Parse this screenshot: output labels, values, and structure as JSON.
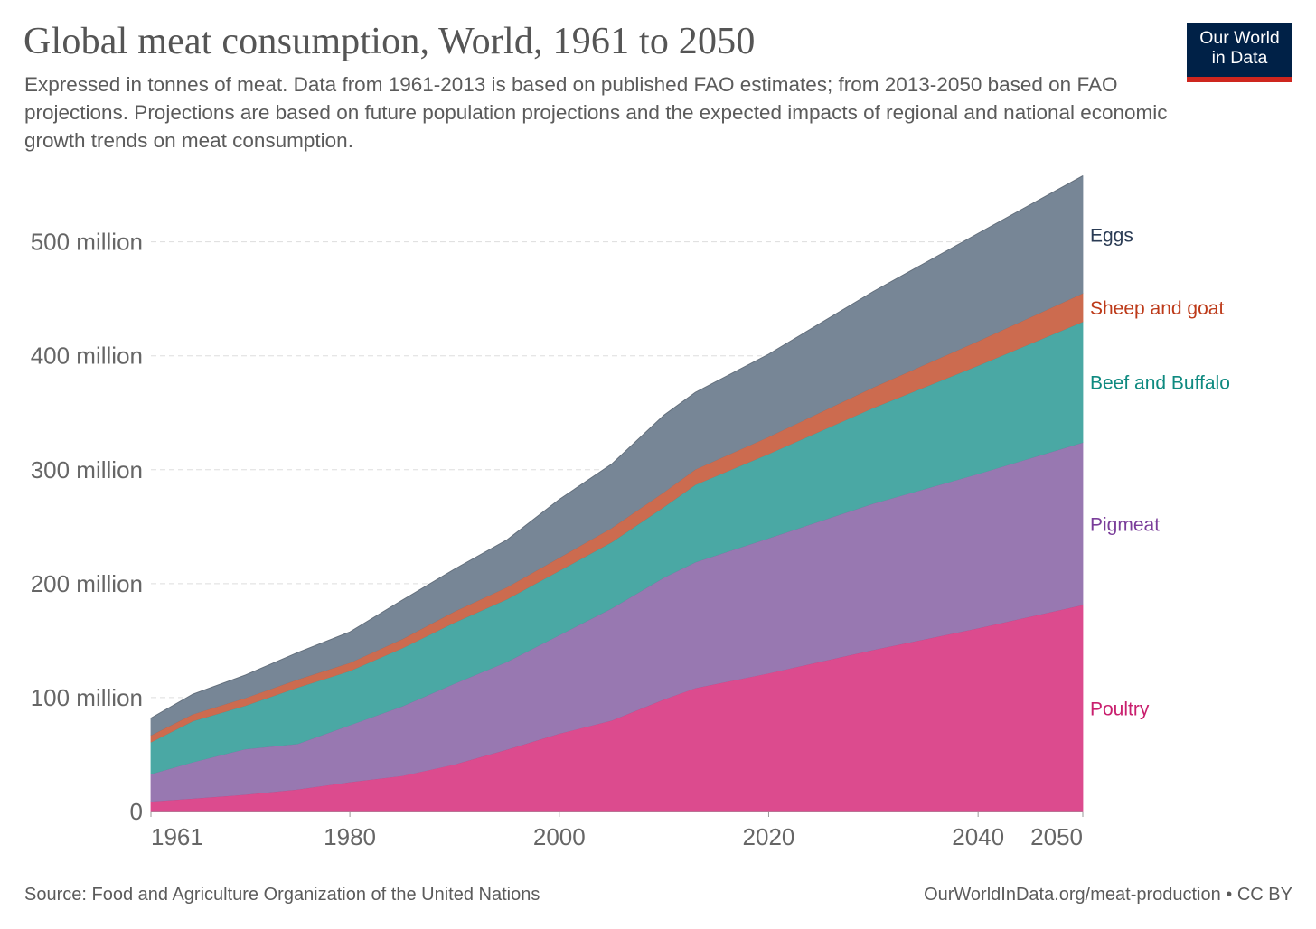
{
  "header": {
    "title": "Global meat consumption, World, 1961 to 2050",
    "subtitle": "Expressed in tonnes of meat. Data from 1961-2013 is based on published FAO estimates; from 2013-2050 based on FAO projections. Projections are based on future population projections and the expected impacts of regional and national economic growth trends on meat consumption."
  },
  "logo": {
    "line1": "Our World",
    "line2": "in Data",
    "bg_color": "#002147",
    "bar_color": "#ce261e"
  },
  "footer": {
    "source": "Source: Food and Agriculture Organization of the United Nations",
    "link": "OurWorldInData.org/meat-production • CC BY"
  },
  "chart_data": {
    "type": "area",
    "stacked": true,
    "title": "Global meat consumption, World, 1961 to 2050",
    "xlim": [
      1961,
      2050
    ],
    "ylim": [
      0,
      560000000
    ],
    "grid": "horizontal dashed",
    "legend": "right, inline labels",
    "x_ticks": [
      {
        "value": 1961,
        "label": "1961"
      },
      {
        "value": 1980,
        "label": "1980"
      },
      {
        "value": 2000,
        "label": "2000"
      },
      {
        "value": 2020,
        "label": "2020"
      },
      {
        "value": 2040,
        "label": "2040"
      },
      {
        "value": 2050,
        "label": "2050"
      }
    ],
    "y_ticks": [
      {
        "value": 0,
        "label": "0"
      },
      {
        "value": 100000000,
        "label": "100 million"
      },
      {
        "value": 200000000,
        "label": "200 million"
      },
      {
        "value": 300000000,
        "label": "300 million"
      },
      {
        "value": 400000000,
        "label": "400 million"
      },
      {
        "value": 500000000,
        "label": "500 million"
      }
    ],
    "x": [
      1961,
      1965,
      1970,
      1975,
      1980,
      1985,
      1990,
      1995,
      2000,
      2005,
      2010,
      2013,
      2020,
      2030,
      2040,
      2050
    ],
    "series": [
      {
        "name": "Poultry",
        "color": "#dc4b8e",
        "label_color": "#c91f6e",
        "values": [
          9000000,
          11500000,
          15000000,
          19500000,
          26000000,
          31500000,
          41500000,
          54500000,
          68500000,
          80000000,
          98500000,
          108500000,
          121500000,
          142000000,
          161000000,
          181500000
        ]
      },
      {
        "name": "Pigmeat",
        "color": "#9878b1",
        "label_color": "#7a3d9a",
        "values": [
          24000000,
          32000000,
          40000000,
          40000000,
          50000000,
          61000000,
          71000000,
          77000000,
          86500000,
          98500000,
          107000000,
          110500000,
          118500000,
          128500000,
          135500000,
          142500000
        ]
      },
      {
        "name": "Beef and Buffalo",
        "color": "#4aa8a4",
        "label_color": "#0f8a80",
        "values": [
          28000000,
          36000000,
          38000000,
          49500000,
          47500000,
          51000000,
          53500000,
          55000000,
          56500000,
          58000000,
          62000000,
          68000000,
          74000000,
          84000000,
          95000000,
          106000000
        ]
      },
      {
        "name": "Sheep and goat",
        "color": "#cc6b4f",
        "label_color": "#bd3a19",
        "values": [
          6000000,
          6000000,
          6800000,
          7000000,
          7200000,
          8000000,
          9800000,
          10500000,
          11500000,
          12500000,
          13000000,
          13500000,
          15000000,
          18000000,
          21500000,
          25000000
        ]
      },
      {
        "name": "Eggs",
        "color": "#778696",
        "label_color": "#2a3b54",
        "values": [
          15000000,
          17500000,
          20000000,
          23500000,
          27000000,
          34000000,
          37000000,
          41500000,
          51000000,
          56000000,
          67500000,
          67500000,
          72500000,
          84000000,
          94500000,
          103000000
        ]
      }
    ]
  }
}
